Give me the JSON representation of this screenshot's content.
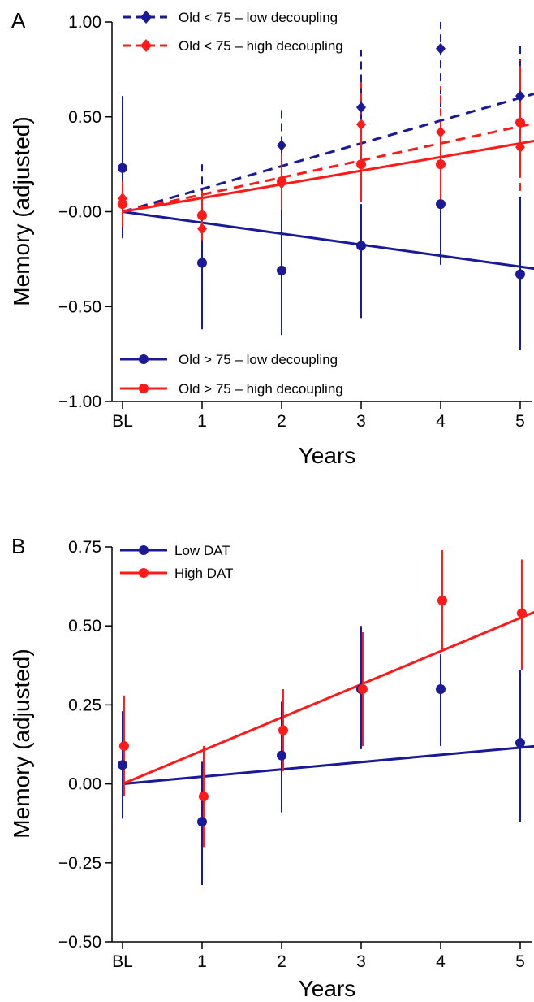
{
  "colors": {
    "blue": "#1a1a99",
    "red": "#ff1a1a"
  },
  "chart_data": [
    {
      "panel": "A",
      "type": "scatter",
      "xlabel": "Years",
      "ylabel": "Memory (adjusted)",
      "x_ticks": [
        "BL",
        "1",
        "2",
        "3",
        "4",
        "5"
      ],
      "x": [
        0,
        1,
        2,
        3,
        4,
        5
      ],
      "xlim": [
        0,
        5.2
      ],
      "ylim": [
        -1.0,
        1.0
      ],
      "y_ticks": [
        "1.00",
        "0.50",
        "−0.00",
        "−0.50",
        "−1.00"
      ],
      "y_tick_values": [
        1.0,
        0.5,
        0.0,
        -0.5,
        -1.0
      ],
      "series": [
        {
          "name": "Old < 75 – low decoupling",
          "color": "blue",
          "marker": "diamond",
          "line": "dashed",
          "offset": 0,
          "y": [
            0.05,
            -0.02,
            0.35,
            0.55,
            0.86,
            0.61
          ],
          "err_low": [
            -0.13,
            -0.2,
            0.15,
            0.27,
            0.55,
            0.35
          ],
          "err_high": [
            0.25,
            0.25,
            0.56,
            0.85,
            1.0,
            0.88
          ],
          "fit": [
            0.0,
            0.12
          ]
        },
        {
          "name": "Old < 75 – high decoupling",
          "color": "red",
          "marker": "diamond",
          "line": "dashed",
          "offset": 0,
          "y": [
            0.07,
            -0.09,
            0.15,
            0.46,
            0.42,
            0.34
          ],
          "err_low": [
            -0.1,
            -0.25,
            -0.02,
            0.24,
            0.16,
            0.11
          ],
          "err_high": [
            0.2,
            0.08,
            0.32,
            0.68,
            0.66,
            0.8
          ],
          "fit": [
            0.0,
            0.09
          ]
        },
        {
          "name": "Old > 75 – low decoupling",
          "color": "blue",
          "marker": "circle",
          "line": "solid",
          "offset": 0,
          "y": [
            0.23,
            -0.27,
            -0.31,
            -0.18,
            0.04,
            -0.33
          ],
          "err_low": [
            -0.14,
            -0.62,
            -0.65,
            -0.56,
            -0.28,
            -0.73
          ],
          "err_high": [
            0.61,
            0.06,
            0.03,
            0.04,
            0.3,
            0.08
          ],
          "fit": [
            0.0,
            -0.058
          ]
        },
        {
          "name": "Old > 75 – high decoupling",
          "color": "red",
          "marker": "circle",
          "line": "solid",
          "offset": 0,
          "y": [
            0.04,
            -0.02,
            0.16,
            0.25,
            0.25,
            0.47
          ],
          "err_low": [
            -0.08,
            -0.15,
            0.01,
            0.05,
            0.03,
            0.2
          ],
          "err_high": [
            0.16,
            0.11,
            0.31,
            0.45,
            0.47,
            0.75
          ],
          "fit": [
            0.0,
            0.072
          ]
        }
      ],
      "legend_top": {
        "position": "top-center",
        "labels": [
          "Old < 75 – low decoupling",
          "Old < 75 – high decoupling"
        ]
      },
      "legend_bottom": {
        "position": "lower-center",
        "labels": [
          "Old > 75 – low decoupling",
          "Old > 75 – high decoupling"
        ]
      }
    },
    {
      "panel": "B",
      "type": "scatter",
      "xlabel": "Years",
      "ylabel": "Memory (adjusted)",
      "x_ticks": [
        "BL",
        "1",
        "2",
        "3",
        "4",
        "5"
      ],
      "x": [
        0,
        1,
        2,
        3,
        4,
        5
      ],
      "xlim": [
        0,
        5.2
      ],
      "ylim": [
        -0.5,
        0.75
      ],
      "y_ticks": [
        "0.75",
        "0.50",
        "0.25",
        "0.00",
        "−0.25",
        "−0.50"
      ],
      "y_tick_values": [
        0.75,
        0.5,
        0.25,
        0.0,
        -0.25,
        -0.5
      ],
      "series": [
        {
          "name": "Low DAT",
          "color": "blue",
          "marker": "circle",
          "line": "solid",
          "offset": 0,
          "y": [
            0.06,
            -0.12,
            0.09,
            0.3,
            0.3,
            0.13
          ],
          "err_low": [
            -0.11,
            -0.32,
            -0.09,
            0.11,
            0.12,
            -0.12
          ],
          "err_high": [
            0.23,
            0.07,
            0.26,
            0.5,
            0.41,
            0.36
          ],
          "fit": [
            0.0,
            0.023
          ]
        },
        {
          "name": "High DAT",
          "color": "red",
          "marker": "circle",
          "line": "solid",
          "offset": 0.02,
          "y": [
            0.12,
            -0.04,
            0.17,
            0.3,
            0.58,
            0.54
          ],
          "err_low": [
            -0.04,
            -0.2,
            0.04,
            0.12,
            0.42,
            0.36
          ],
          "err_high": [
            0.28,
            0.12,
            0.3,
            0.48,
            0.74,
            0.71
          ],
          "fit": [
            0.0,
            0.105
          ]
        }
      ],
      "legend": {
        "position": "top-left",
        "labels": [
          "Low DAT",
          "High DAT"
        ]
      }
    }
  ]
}
